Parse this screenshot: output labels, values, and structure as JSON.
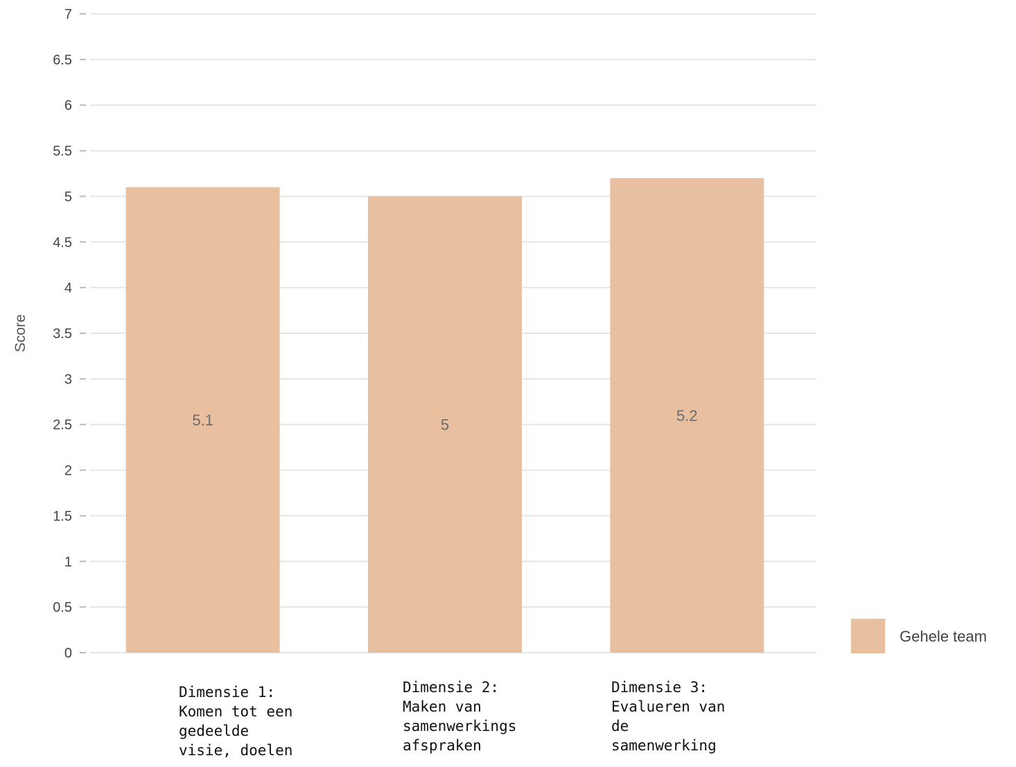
{
  "chart_data": {
    "type": "bar",
    "categories": [
      [
        "Dimensie 1:",
        "Komen tot een",
        "gedeelde",
        "visie, doelen"
      ],
      [
        "Dimensie 2:",
        "Maken van",
        "samenwerkings",
        "afspraken"
      ],
      [
        "Dimensie 3:",
        "Evalueren van",
        "de",
        "samenwerking"
      ]
    ],
    "series": [
      {
        "name": "Gehele team",
        "values": [
          5.1,
          5,
          5.2
        ],
        "color": "#e8c09f"
      }
    ],
    "data_labels": [
      "5.1",
      "5",
      "5.2"
    ],
    "ylabel": "Score",
    "ylim": [
      0,
      7
    ],
    "yticks": [
      0,
      0.5,
      1,
      1.5,
      2,
      2.5,
      3,
      3.5,
      4,
      4.5,
      5,
      5.5,
      6,
      6.5,
      7
    ],
    "grid": true,
    "gridline_color": "#e6e6e6",
    "legend_position": "right"
  }
}
